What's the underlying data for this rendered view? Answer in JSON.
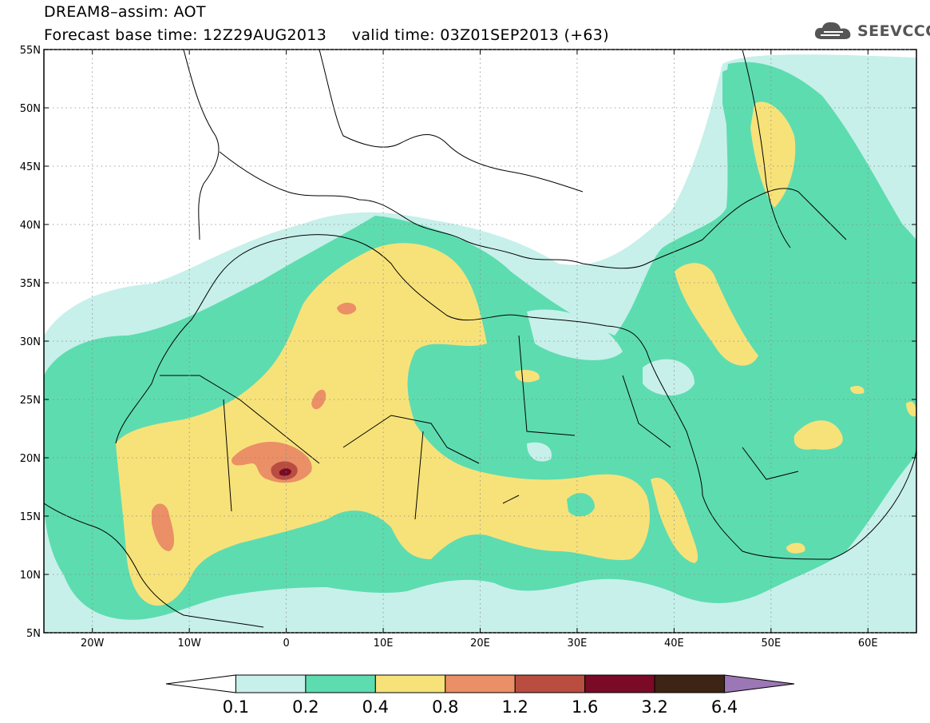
{
  "header": {
    "title_line1": "DREAM8–assim: AOT",
    "title_line2": "Forecast base time: 12Z29AUG2013     valid time: 03Z01SEP2013 (+63)"
  },
  "logo": {
    "text": "SEEVCCC",
    "icon": "cloud-icon"
  },
  "map": {
    "lon_ticks": [
      "20W",
      "10W",
      "0",
      "10E",
      "20E",
      "30E",
      "40E",
      "50E",
      "60E"
    ],
    "lat_ticks": [
      "55N",
      "50N",
      "45N",
      "40N",
      "35N",
      "30N",
      "25N",
      "20N",
      "15N",
      "10N",
      "5N"
    ],
    "lon_range": [
      -25,
      65
    ],
    "lat_range": [
      5,
      55
    ]
  },
  "legend": {
    "levels": [
      "0.1",
      "0.2",
      "0.4",
      "0.8",
      "1.2",
      "1.6",
      "3.2",
      "6.4"
    ],
    "colors": [
      "#ffffff",
      "#c7f0ea",
      "#5ddcb0",
      "#f7e27a",
      "#eb8f66",
      "#b84d40",
      "#7a0a26",
      "#3d2414",
      "#9c77b5"
    ]
  }
}
